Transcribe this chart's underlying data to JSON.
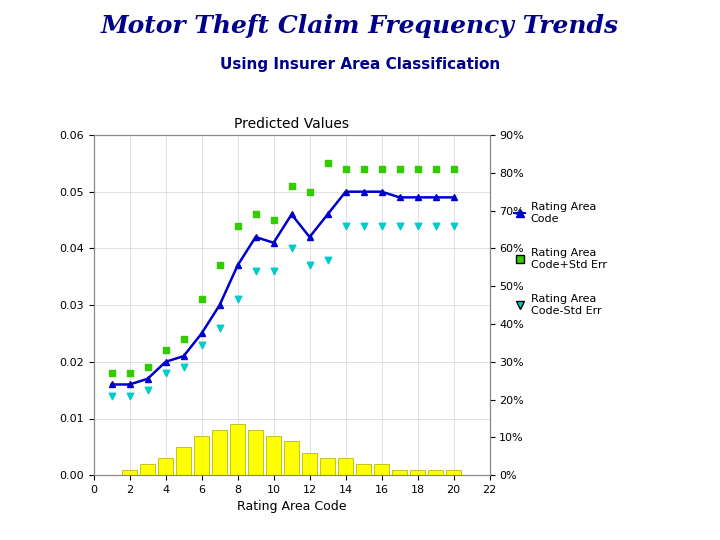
{
  "title": "Motor Theft Claim Frequency Trends",
  "subtitle": "Using Insurer Area Classification",
  "inner_title": "Predicted Values",
  "xlabel": "Rating Area Code",
  "title_color": "#00008B",
  "subtitle_color": "#00008B",
  "background_color": "#ffffff",
  "plot_bg_color": "#ffffff",
  "x_main": [
    1,
    2,
    3,
    4,
    5,
    6,
    7,
    8,
    9,
    10,
    11,
    12,
    13,
    14,
    15,
    16,
    17,
    18,
    19,
    20
  ],
  "y_main": [
    0.016,
    0.016,
    0.017,
    0.02,
    0.021,
    0.025,
    0.03,
    0.037,
    0.042,
    0.041,
    0.046,
    0.042,
    0.046,
    0.05,
    0.05,
    0.05,
    0.049,
    0.049,
    0.049,
    0.049
  ],
  "x_upper": [
    1,
    2,
    3,
    4,
    5,
    6,
    7,
    8,
    9,
    10,
    11,
    12,
    13,
    14,
    15,
    16,
    17,
    18,
    19,
    20
  ],
  "y_upper": [
    0.018,
    0.018,
    0.019,
    0.022,
    0.024,
    0.031,
    0.037,
    0.044,
    0.046,
    0.045,
    0.051,
    0.05,
    0.055,
    0.054,
    0.054,
    0.054,
    0.054,
    0.054,
    0.054,
    0.054
  ],
  "x_lower": [
    1,
    2,
    3,
    4,
    5,
    6,
    7,
    8,
    9,
    10,
    11,
    12,
    13,
    14,
    15,
    16,
    17,
    18,
    19,
    20
  ],
  "y_lower": [
    0.014,
    0.014,
    0.015,
    0.018,
    0.019,
    0.023,
    0.026,
    0.031,
    0.036,
    0.036,
    0.04,
    0.037,
    0.038,
    0.044,
    0.044,
    0.044,
    0.044,
    0.044,
    0.044,
    0.044
  ],
  "bar_x": [
    2,
    3,
    4,
    5,
    6,
    7,
    8,
    9,
    10,
    11,
    12,
    13,
    14,
    15,
    16,
    17,
    18,
    19,
    20
  ],
  "bar_heights": [
    0.001,
    0.002,
    0.003,
    0.005,
    0.007,
    0.008,
    0.009,
    0.008,
    0.007,
    0.006,
    0.004,
    0.003,
    0.003,
    0.002,
    0.002,
    0.001,
    0.001,
    0.001,
    0.001
  ],
  "xlim": [
    0,
    22
  ],
  "ylim_left": [
    0.0,
    0.06
  ],
  "ylim_right": [
    0.0,
    0.09
  ],
  "main_color": "#0000CC",
  "upper_color": "#33CC00",
  "lower_color": "#00CCCC",
  "bar_color": "#FFFF00",
  "bar_edge_color": "#AAAA00",
  "legend_label_main": "Rating Area\nCode",
  "legend_label_upper": "Rating Area\nCode+Std Err",
  "legend_label_lower": "Rating Area\nCode-Std Err"
}
